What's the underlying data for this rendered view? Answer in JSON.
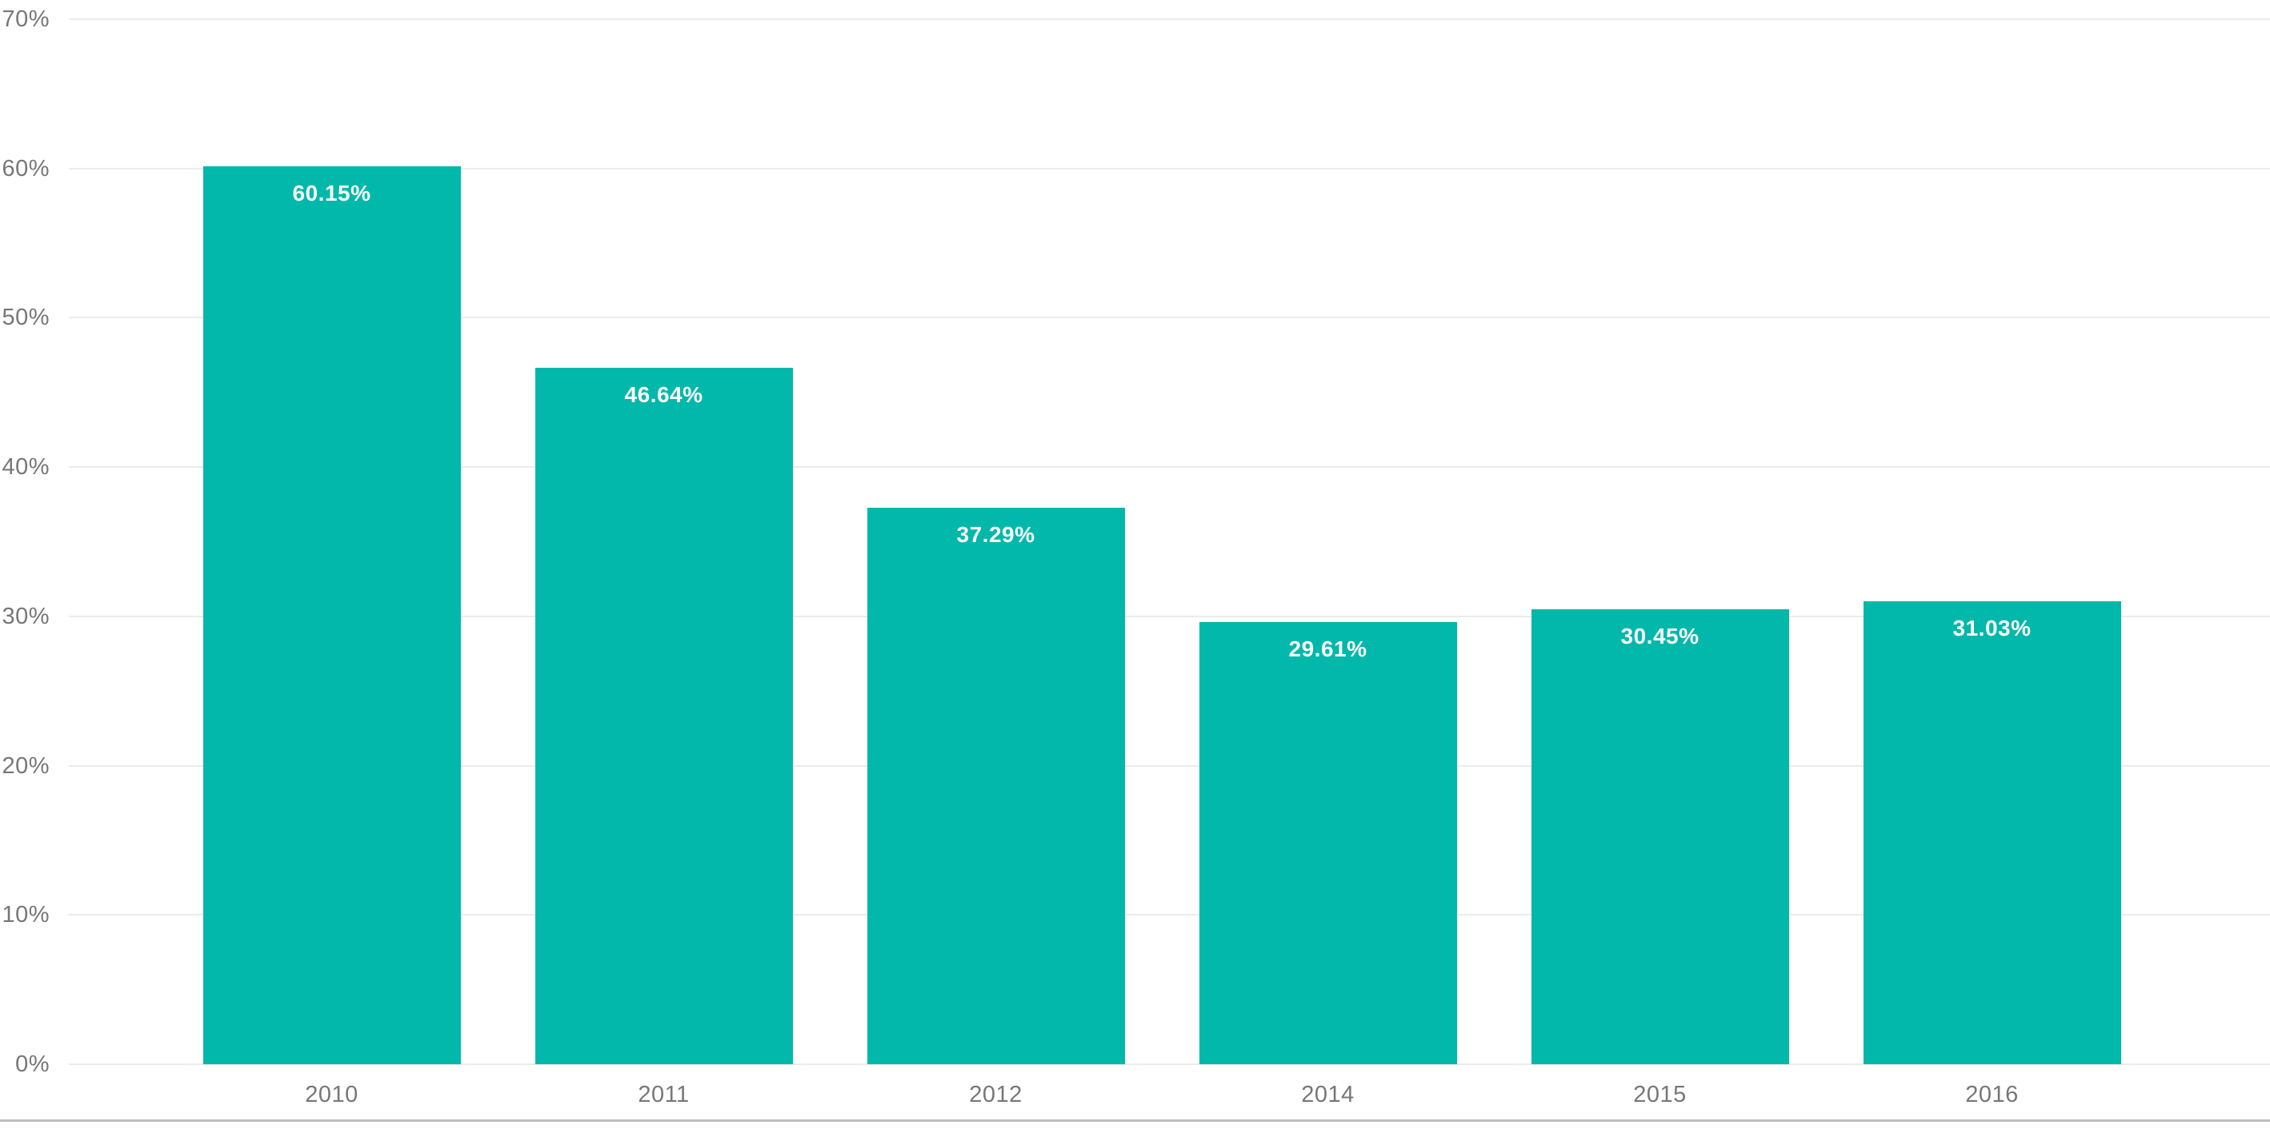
{
  "chart": {
    "background": "#FFFFFF",
    "bar_color": "#01B8AA",
    "data_label_color": "#FFFFFF",
    "axis_text_color": "#777777",
    "gridline_color": "#EBEBEB",
    "bottom_border_color": "#BDBDBD"
  },
  "chart_data": {
    "type": "bar",
    "title": "",
    "xlabel": "",
    "ylabel": "",
    "categories": [
      "2010",
      "2011",
      "2012",
      "2014",
      "2015",
      "2016"
    ],
    "values": [
      60.15,
      46.64,
      37.29,
      29.61,
      30.45,
      31.03
    ],
    "data_labels": [
      "60.15%",
      "46.64%",
      "37.29%",
      "29.61%",
      "30.45%",
      "31.03%"
    ],
    "y_ticks": [
      "70%",
      "60%",
      "50%",
      "40%",
      "30%",
      "20%",
      "10%",
      "0%"
    ],
    "y_tick_values": [
      70,
      60,
      50,
      40,
      30,
      20,
      10,
      0
    ],
    "ylim": [
      0,
      70
    ],
    "grid": true,
    "legend": false,
    "data_label_position": "inside-end"
  }
}
